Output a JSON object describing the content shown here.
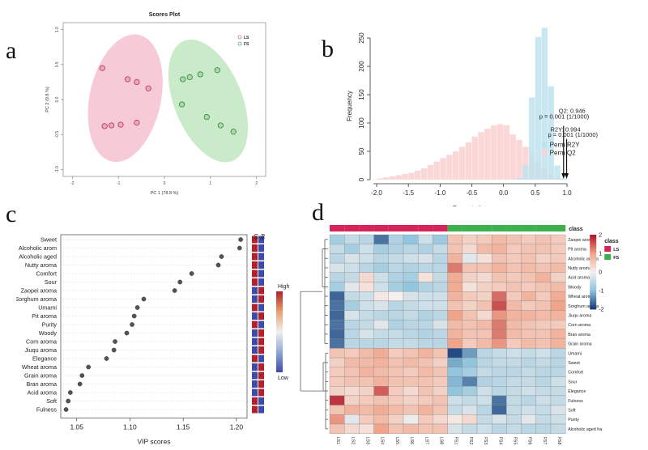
{
  "panel_labels": {
    "a": "a",
    "b": "b",
    "c": "c",
    "d": "d"
  },
  "chart_data": [
    {
      "id": "a",
      "type": "scatter",
      "title": "Scores Plot",
      "xlabel": "PC 1 (78.8 %)",
      "ylabel": "PC 2 (9.8 %)",
      "xlim": [
        -2.2,
        2.2
      ],
      "ylim": [
        -1.1,
        1.1
      ],
      "xticks": [
        -2,
        -1,
        0,
        1,
        2
      ],
      "yticks": [
        -1.0,
        -0.5,
        0.0,
        0.5,
        1.0
      ],
      "legend": [
        {
          "name": "LS",
          "color": "#e06a8a"
        },
        {
          "name": "FS",
          "color": "#4fae5a"
        }
      ],
      "series": [
        {
          "name": "LS",
          "points": [
            [
              -1.35,
              0.45
            ],
            [
              -0.8,
              0.29
            ],
            [
              -0.6,
              0.25
            ],
            [
              -0.35,
              0.16
            ],
            [
              -1.3,
              -0.38
            ],
            [
              -1.15,
              -0.37
            ],
            [
              -0.95,
              -0.36
            ],
            [
              -0.6,
              -0.33
            ]
          ]
        },
        {
          "name": "FS",
          "points": [
            [
              0.4,
              0.29
            ],
            [
              0.55,
              0.32
            ],
            [
              0.78,
              0.36
            ],
            [
              1.15,
              0.42
            ],
            [
              0.38,
              -0.07
            ],
            [
              0.92,
              -0.25
            ],
            [
              1.22,
              -0.37
            ],
            [
              1.5,
              -0.46
            ]
          ]
        }
      ]
    },
    {
      "id": "b",
      "type": "histogram",
      "xlabel": "Permutations",
      "ylabel": "Frequency",
      "xlim": [
        -2,
        1
      ],
      "ylim": [
        0,
        260
      ],
      "xticks": [
        -2.0,
        -1.5,
        -1.0,
        -0.5,
        0.0,
        0.5,
        1.0
      ],
      "yticks": [
        0,
        50,
        100,
        150,
        200,
        250
      ],
      "bin_starts": [
        -2.0,
        -1.9,
        -1.8,
        -1.7,
        -1.6,
        -1.5,
        -1.4,
        -1.3,
        -1.2,
        -1.1,
        -1.0,
        -0.9,
        -0.8,
        -0.7,
        -0.6,
        -0.5,
        -0.4,
        -0.3,
        -0.2,
        -0.1,
        0.0,
        0.1,
        0.2,
        0.3,
        0.4,
        0.5,
        0.6,
        0.7,
        0.8,
        0.9
      ],
      "bin_width": 0.1,
      "series": [
        {
          "name": "Perm R2Y",
          "color": "#bfe3ee",
          "values": [
            0,
            0,
            0,
            0,
            0,
            0,
            0,
            0,
            0,
            0,
            0,
            0,
            0,
            0,
            0,
            0,
            0,
            0,
            0,
            0,
            0,
            0,
            3,
            25,
            145,
            252,
            268,
            165,
            25,
            2
          ]
        },
        {
          "name": "Perm Q2",
          "color": "#f9d4d4",
          "values": [
            2,
            4,
            6,
            8,
            10,
            12,
            16,
            20,
            26,
            32,
            38,
            44,
            50,
            58,
            66,
            76,
            84,
            90,
            96,
            98,
            96,
            80,
            70,
            58,
            45,
            33,
            20,
            10,
            4,
            0
          ]
        }
      ],
      "annotations": [
        {
          "text": "Q2: 0.946",
          "x": 0.946
        },
        {
          "text": "p = 0.001 (1/1000)",
          "x": 0.946
        },
        {
          "text": "R2Y: 0.994",
          "x": 0.994
        },
        {
          "text": "p = 0.001 (1/1000)",
          "x": 0.994
        }
      ]
    },
    {
      "id": "c",
      "type": "dotplot",
      "xlabel": "VIP scores",
      "xlim": [
        1.035,
        1.21
      ],
      "xticks": [
        1.05,
        1.1,
        1.15,
        1.2
      ],
      "heat_columns": [
        "LS",
        "FS"
      ],
      "scale_labels": {
        "high": "High",
        "low": "Low"
      },
      "items": [
        {
          "name": "Sweet",
          "value": 1.204,
          "ls": "high",
          "fs": "low"
        },
        {
          "name": "Alcoholic arom",
          "value": 1.203,
          "ls": "high",
          "fs": "low"
        },
        {
          "name": "Alcoholic aged",
          "value": 1.186,
          "ls": "high",
          "fs": "low"
        },
        {
          "name": "Nutty aroma",
          "value": 1.183,
          "ls": "high",
          "fs": "low"
        },
        {
          "name": "Comfort",
          "value": 1.158,
          "ls": "high",
          "fs": "low"
        },
        {
          "name": "Sour",
          "value": 1.147,
          "ls": "high",
          "fs": "low"
        },
        {
          "name": "Zaopei aroma",
          "value": 1.142,
          "ls": "low",
          "fs": "high"
        },
        {
          "name": "Sorghum aroma",
          "value": 1.113,
          "ls": "low",
          "fs": "high"
        },
        {
          "name": "Umami",
          "value": 1.107,
          "ls": "high",
          "fs": "low"
        },
        {
          "name": "Pit aroma",
          "value": 1.104,
          "ls": "low",
          "fs": "high"
        },
        {
          "name": "Purity",
          "value": 1.102,
          "ls": "high",
          "fs": "low"
        },
        {
          "name": "Woody",
          "value": 1.097,
          "ls": "low",
          "fs": "high"
        },
        {
          "name": "Corn aroma",
          "value": 1.086,
          "ls": "low",
          "fs": "high"
        },
        {
          "name": "Jiuqu aroma",
          "value": 1.085,
          "ls": "low",
          "fs": "high"
        },
        {
          "name": "Elegance",
          "value": 1.078,
          "ls": "high",
          "fs": "low"
        },
        {
          "name": "Wheat aroma",
          "value": 1.061,
          "ls": "low",
          "fs": "high"
        },
        {
          "name": "Grain aroma",
          "value": 1.055,
          "ls": "low",
          "fs": "high"
        },
        {
          "name": "Bran aroma",
          "value": 1.053,
          "ls": "low",
          "fs": "high"
        },
        {
          "name": "Acid aroma",
          "value": 1.044,
          "ls": "low",
          "fs": "high"
        },
        {
          "name": "Soft",
          "value": 1.042,
          "ls": "high",
          "fs": "low"
        },
        {
          "name": "Fulness",
          "value": 1.04,
          "ls": "high",
          "fs": "low"
        }
      ]
    },
    {
      "id": "d",
      "type": "heatmap",
      "class_label": "class",
      "class_legend": [
        {
          "name": "LS",
          "color": "#d6245a"
        },
        {
          "name": "FS",
          "color": "#3bb04d"
        }
      ],
      "scale_ticks": [
        2,
        1,
        0,
        -1,
        -2
      ],
      "columns": [
        "LS1",
        "LS2",
        "LS3",
        "LS4",
        "LS5",
        "LS6",
        "LS7",
        "LS8",
        "FS1",
        "FS2",
        "FS3",
        "FS4",
        "FS5",
        "FS6",
        "FS7",
        "FS8"
      ],
      "column_classes": [
        "LS",
        "LS",
        "LS",
        "LS",
        "LS",
        "LS",
        "LS",
        "LS",
        "FS",
        "FS",
        "FS",
        "FS",
        "FS",
        "FS",
        "FS",
        "FS"
      ],
      "rows": [
        "Zaopei aroma",
        "Pit aroma",
        "Alcoholic aroma",
        "Nutty aroma",
        "Acid aroma",
        "Woody",
        "Wheat aroma",
        "Sorghum aroma",
        "Jiuqu aroma",
        "Corn aroma",
        "Bran aroma",
        "Grain aroma",
        "Umami",
        "Sweet",
        "Comfort",
        "Sour",
        "Elegance",
        "Fulness",
        "Soft",
        "Purity",
        "Alcoholic aged fra"
      ],
      "values": [
        [
          -0.8,
          -0.5,
          -0.6,
          -1.6,
          -0.7,
          -1.0,
          -0.4,
          -0.9,
          0.6,
          0.4,
          0.5,
          0.7,
          0.6,
          0.5,
          0.6,
          0.5
        ],
        [
          -0.5,
          -0.8,
          -0.4,
          -0.8,
          -0.7,
          -0.6,
          -0.7,
          -0.5,
          0.6,
          0.3,
          0.7,
          0.8,
          0.5,
          0.6,
          0.6,
          0.5
        ],
        [
          -0.6,
          -0.3,
          -0.4,
          -0.6,
          -0.5,
          -0.4,
          -0.3,
          -0.6,
          0.8,
          -0.2,
          0.2,
          0.6,
          0.5,
          0.6,
          0.4,
          0.5
        ],
        [
          -0.3,
          -0.4,
          -0.6,
          -0.8,
          -0.6,
          -0.7,
          -0.6,
          -0.6,
          1.3,
          0.6,
          0.6,
          0.8,
          0.6,
          0.7,
          0.6,
          0.7
        ],
        [
          -0.6,
          -0.5,
          0.3,
          -0.4,
          -0.7,
          -0.8,
          0.2,
          -0.5,
          0.9,
          0.4,
          0.3,
          0.6,
          0.5,
          0.6,
          0.8,
          0.4
        ],
        [
          -0.8,
          -0.2,
          0.2,
          -0.4,
          -0.8,
          -1.0,
          -0.7,
          -0.6,
          0.9,
          0.2,
          0.4,
          0.5,
          0.6,
          0.5,
          0.6,
          0.7
        ],
        [
          -1.7,
          -0.5,
          -0.4,
          0.1,
          0.0,
          -0.3,
          -0.4,
          -0.4,
          0.8,
          0.5,
          0.4,
          1.4,
          0.5,
          0.8,
          0.5,
          0.9
        ],
        [
          -1.6,
          -0.8,
          -0.4,
          -0.3,
          -0.6,
          -0.5,
          -0.4,
          -0.4,
          0.6,
          0.4,
          0.6,
          1.6,
          0.7,
          0.5,
          0.6,
          1.0
        ],
        [
          -1.7,
          -0.3,
          -0.5,
          -0.6,
          -0.6,
          -0.5,
          -0.7,
          -0.6,
          1.0,
          0.6,
          0.3,
          1.1,
          0.8,
          0.8,
          0.7,
          0.8
        ],
        [
          -1.6,
          -0.6,
          -0.5,
          -0.2,
          -0.7,
          -0.6,
          -0.6,
          -0.3,
          0.7,
          0.6,
          0.7,
          1.3,
          0.7,
          0.6,
          0.5,
          0.5
        ],
        [
          -1.7,
          -0.6,
          -0.3,
          -0.5,
          -0.5,
          -0.6,
          -0.7,
          -0.6,
          0.8,
          0.6,
          0.6,
          1.3,
          0.7,
          0.6,
          0.6,
          0.8
        ],
        [
          -1.6,
          -0.6,
          -0.6,
          -0.6,
          -0.5,
          -0.5,
          -0.6,
          -0.6,
          1.0,
          0.5,
          0.7,
          1.1,
          0.5,
          0.7,
          0.6,
          0.8
        ],
        [
          0.6,
          0.5,
          0.7,
          0.9,
          0.5,
          0.6,
          0.8,
          0.6,
          -1.9,
          -1.3,
          -0.6,
          -0.5,
          -0.4,
          -0.5,
          -0.4,
          -0.6
        ],
        [
          0.4,
          0.7,
          0.7,
          0.8,
          0.6,
          0.7,
          0.6,
          0.4,
          -1.2,
          -1.0,
          -0.6,
          -0.5,
          -0.5,
          -0.6,
          -0.5,
          -0.6
        ],
        [
          0.5,
          0.6,
          0.8,
          0.7,
          0.6,
          0.5,
          0.7,
          0.6,
          -1.0,
          -0.8,
          -0.5,
          -0.6,
          -0.6,
          -0.5,
          -0.6,
          -0.6
        ],
        [
          0.5,
          0.6,
          0.6,
          0.8,
          0.6,
          0.6,
          0.6,
          0.5,
          -1.1,
          -1.5,
          -0.7,
          -0.6,
          -0.5,
          -0.5,
          -0.6,
          -0.4
        ],
        [
          0.4,
          0.3,
          0.4,
          1.5,
          0.5,
          0.3,
          0.6,
          0.4,
          -1.0,
          -0.8,
          -0.4,
          -0.6,
          -0.5,
          -0.4,
          -0.5,
          -0.5
        ],
        [
          1.8,
          0.4,
          0.5,
          0.6,
          0.5,
          0.4,
          0.5,
          0.6,
          -0.4,
          -0.5,
          -0.4,
          -1.6,
          -0.5,
          -0.6,
          -0.4,
          -0.5
        ],
        [
          0.6,
          0.8,
          0.7,
          0.9,
          0.7,
          0.6,
          0.8,
          0.6,
          -0.5,
          -0.3,
          -0.6,
          -1.7,
          -0.5,
          -0.4,
          -0.5,
          -0.3
        ],
        [
          1.1,
          -0.2,
          0.5,
          0.7,
          0.4,
          -0.1,
          0.5,
          0.3,
          0.1,
          0.3,
          -0.5,
          -0.3,
          -0.5,
          -0.2,
          -0.5,
          -0.4
        ],
        [
          0.6,
          0.3,
          0.2,
          1.0,
          0.6,
          0.7,
          0.6,
          0.6,
          -0.3,
          -0.5,
          -0.4,
          -0.6,
          -0.5,
          -0.6,
          -0.6,
          -0.5
        ]
      ]
    }
  ]
}
